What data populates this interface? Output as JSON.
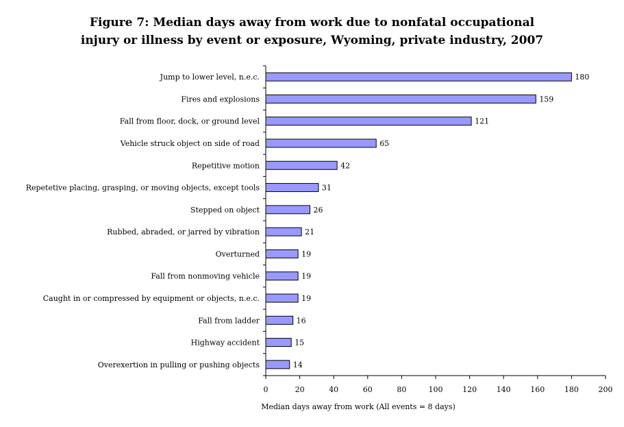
{
  "chart_data": {
    "type": "bar",
    "orientation": "horizontal",
    "title_lines": [
      "Figure 7:  Median days away from work due to nonfatal occupational",
      "injury or illness by event or exposure, Wyoming, private industry, 2007"
    ],
    "xlabel": "Median days away from work (All events = 8 days)",
    "ylabel": "",
    "xlim": [
      0,
      200
    ],
    "xticks": [
      0,
      20,
      40,
      60,
      80,
      100,
      120,
      140,
      160,
      180,
      200
    ],
    "grid": false,
    "legend": "none",
    "bar_color": "#9999ff",
    "bar_edge_color": "#000000",
    "categories": [
      "Jump to lower level, n.e.c.",
      "Fires and explosions",
      "Fall from floor, dock, or ground level",
      "Vehicle struck object on side of road",
      "Repetitive motion",
      "Repetetive placing, grasping, or moving objects, except tools",
      "Stepped on object",
      "Rubbed, abraded, or jarred by vibration",
      "Overturned",
      "Fall from nonmoving vehicle",
      "Caught in or compressed by equipment or objects, n.e.c.",
      "Fall from ladder",
      "Highway accident",
      "Overexertion in pulling or pushing objects"
    ],
    "values": [
      180,
      159,
      121,
      65,
      42,
      31,
      26,
      21,
      19,
      19,
      19,
      16,
      15,
      14
    ]
  }
}
